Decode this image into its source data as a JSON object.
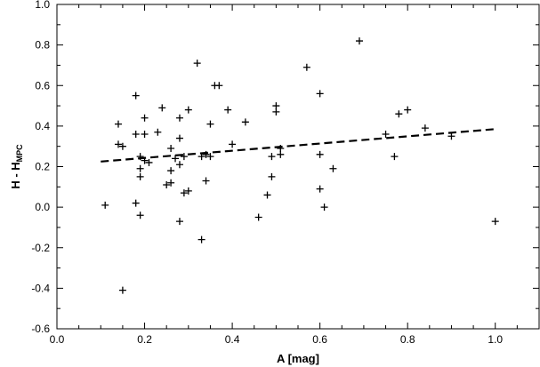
{
  "chart_data": {
    "type": "scatter",
    "xlabel": "A [mag]",
    "ylabel_main": "H - H",
    "ylabel_sub": "MPC",
    "xlim": [
      0.0,
      1.1
    ],
    "ylim": [
      -0.6,
      1.0
    ],
    "x_ticks": [
      0.0,
      0.2,
      0.4,
      0.6,
      0.8,
      1.0
    ],
    "x_tick_labels": [
      "0.0",
      "0.2",
      "0.4",
      "0.6",
      "0.8",
      "1.0"
    ],
    "y_ticks": [
      -0.6,
      -0.4,
      -0.2,
      0.0,
      0.2,
      0.4,
      0.6,
      0.8,
      1.0
    ],
    "y_tick_labels": [
      "-0.6",
      "-0.4",
      "-0.2",
      "0.0",
      "0.2",
      "0.4",
      "0.6",
      "0.8",
      "1.0"
    ],
    "grid": false,
    "marker": "plus",
    "points": [
      [
        0.11,
        0.01
      ],
      [
        0.14,
        0.41
      ],
      [
        0.14,
        0.31
      ],
      [
        0.15,
        0.3
      ],
      [
        0.15,
        -0.41
      ],
      [
        0.18,
        0.55
      ],
      [
        0.18,
        0.36
      ],
      [
        0.18,
        0.02
      ],
      [
        0.19,
        0.25
      ],
      [
        0.19,
        0.19
      ],
      [
        0.19,
        0.15
      ],
      [
        0.19,
        -0.04
      ],
      [
        0.2,
        0.44
      ],
      [
        0.2,
        0.36
      ],
      [
        0.2,
        0.23
      ],
      [
        0.21,
        0.22
      ],
      [
        0.23,
        0.37
      ],
      [
        0.24,
        0.49
      ],
      [
        0.25,
        0.11
      ],
      [
        0.26,
        0.29
      ],
      [
        0.26,
        0.18
      ],
      [
        0.26,
        0.12
      ],
      [
        0.27,
        0.24
      ],
      [
        0.28,
        0.44
      ],
      [
        0.28,
        0.34
      ],
      [
        0.28,
        0.21
      ],
      [
        0.28,
        -0.07
      ],
      [
        0.29,
        0.25
      ],
      [
        0.29,
        0.07
      ],
      [
        0.3,
        0.48
      ],
      [
        0.3,
        0.08
      ],
      [
        0.32,
        0.71
      ],
      [
        0.33,
        0.25
      ],
      [
        0.33,
        -0.16
      ],
      [
        0.34,
        0.26
      ],
      [
        0.34,
        0.13
      ],
      [
        0.35,
        0.41
      ],
      [
        0.35,
        0.25
      ],
      [
        0.36,
        0.6
      ],
      [
        0.37,
        0.6
      ],
      [
        0.39,
        0.48
      ],
      [
        0.4,
        0.31
      ],
      [
        0.43,
        0.42
      ],
      [
        0.46,
        -0.05
      ],
      [
        0.48,
        0.06
      ],
      [
        0.49,
        0.25
      ],
      [
        0.49,
        0.15
      ],
      [
        0.5,
        0.5
      ],
      [
        0.5,
        0.47
      ],
      [
        0.51,
        0.29
      ],
      [
        0.51,
        0.26
      ],
      [
        0.57,
        0.69
      ],
      [
        0.6,
        0.56
      ],
      [
        0.6,
        0.26
      ],
      [
        0.6,
        0.09
      ],
      [
        0.61,
        0.0
      ],
      [
        0.63,
        0.19
      ],
      [
        0.69,
        0.82
      ],
      [
        0.75,
        0.36
      ],
      [
        0.77,
        0.25
      ],
      [
        0.78,
        0.46
      ],
      [
        0.8,
        0.48
      ],
      [
        0.84,
        0.39
      ],
      [
        0.9,
        0.35
      ],
      [
        1.0,
        -0.07
      ]
    ],
    "fit_line": {
      "style": "dashed",
      "x": [
        0.1,
        1.0
      ],
      "y": [
        0.225,
        0.385
      ]
    },
    "colors": {
      "marker": "#000000",
      "line": "#000000",
      "background": "#ffffff"
    }
  }
}
